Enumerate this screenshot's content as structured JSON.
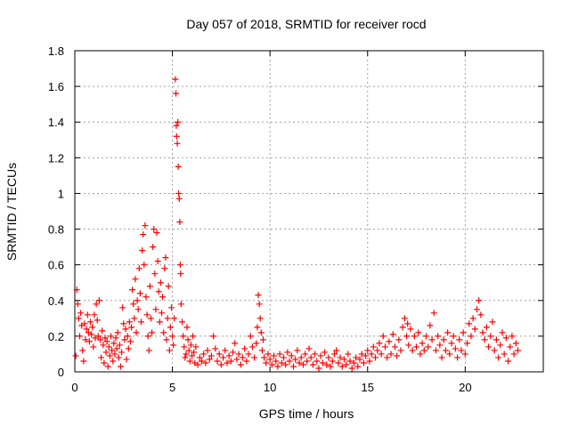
{
  "chart_data": {
    "type": "scatter",
    "title": "Day 057 of 2018, SRMTID for receiver rocd",
    "xlabel": "GPS time / hours",
    "ylabel": "SRMTID / TECUs",
    "xlim": [
      0,
      24
    ],
    "ylim": [
      0,
      1.8
    ],
    "x_ticks": [
      0,
      5,
      10,
      15,
      20
    ],
    "y_ticks": [
      0,
      0.2,
      0.4,
      0.6,
      0.8,
      1,
      1.2,
      1.4,
      1.6,
      1.8
    ],
    "y_tick_labels": [
      "0",
      "0.2",
      "0.4",
      "0.6",
      "0.8",
      "1",
      "1.2",
      "1.4",
      "1.6",
      "1.8"
    ],
    "grid": true,
    "marker": "+",
    "series": [
      {
        "name": "SRMTID",
        "color": "#ff0000",
        "points": [
          [
            0.05,
            0.09
          ],
          [
            0.1,
            0.46
          ],
          [
            0.15,
            0.38
          ],
          [
            0.2,
            0.3
          ],
          [
            0.25,
            0.2
          ],
          [
            0.3,
            0.33
          ],
          [
            0.35,
            0.26
          ],
          [
            0.4,
            0.12
          ],
          [
            0.45,
            0.06
          ],
          [
            0.5,
            0.27
          ],
          [
            0.55,
            0.18
          ],
          [
            0.6,
            0.24
          ],
          [
            0.65,
            0.32
          ],
          [
            0.7,
            0.22
          ],
          [
            0.75,
            0.17
          ],
          [
            0.8,
            0.28
          ],
          [
            0.85,
            0.21
          ],
          [
            0.9,
            0.25
          ],
          [
            0.95,
            0.14
          ],
          [
            1.0,
            0.32
          ],
          [
            1.05,
            0.19
          ],
          [
            1.1,
            0.38
          ],
          [
            1.15,
            0.29
          ],
          [
            1.2,
            0.2
          ],
          [
            1.25,
            0.4
          ],
          [
            1.3,
            0.18
          ],
          [
            1.35,
            0.08
          ],
          [
            1.4,
            0.23
          ],
          [
            1.45,
            0.15
          ],
          [
            1.5,
            0.05
          ],
          [
            1.55,
            0.19
          ],
          [
            1.6,
            0.11
          ],
          [
            1.65,
            0.17
          ],
          [
            1.7,
            0.03
          ],
          [
            1.75,
            0.14
          ],
          [
            1.8,
            0.09
          ],
          [
            1.85,
            0.2
          ],
          [
            1.9,
            0.12
          ],
          [
            1.95,
            0.06
          ],
          [
            2.0,
            0.16
          ],
          [
            2.05,
            0.1
          ],
          [
            2.1,
            0.19
          ],
          [
            2.15,
            0.13
          ],
          [
            2.2,
            0.22
          ],
          [
            2.25,
            0.08
          ],
          [
            2.3,
            0.15
          ],
          [
            2.35,
            0.03
          ],
          [
            2.4,
            0.11
          ],
          [
            2.45,
            0.36
          ],
          [
            2.5,
            0.27
          ],
          [
            2.55,
            0.18
          ],
          [
            2.6,
            0.24
          ],
          [
            2.65,
            0.07
          ],
          [
            2.7,
            0.2
          ],
          [
            2.75,
            0.13
          ],
          [
            2.8,
            0.28
          ],
          [
            2.85,
            0.17
          ],
          [
            2.9,
            0.25
          ],
          [
            2.95,
            0.46
          ],
          [
            3.0,
            0.38
          ],
          [
            3.05,
            0.3
          ],
          [
            3.1,
            0.52
          ],
          [
            3.15,
            0.22
          ],
          [
            3.2,
            0.4
          ],
          [
            3.25,
            0.35
          ],
          [
            3.3,
            0.58
          ],
          [
            3.35,
            0.44
          ],
          [
            3.4,
            0.28
          ],
          [
            3.45,
            0.68
          ],
          [
            3.5,
            0.77
          ],
          [
            3.55,
            0.6
          ],
          [
            3.6,
            0.82
          ],
          [
            3.65,
            0.42
          ],
          [
            3.7,
            0.32
          ],
          [
            3.75,
            0.2
          ],
          [
            3.8,
            0.12
          ],
          [
            3.85,
            0.48
          ],
          [
            3.9,
            0.3
          ],
          [
            3.95,
            0.22
          ],
          [
            4.0,
            0.7
          ],
          [
            4.05,
            0.8
          ],
          [
            4.1,
            0.55
          ],
          [
            4.15,
            0.35
          ],
          [
            4.2,
            0.78
          ],
          [
            4.25,
            0.62
          ],
          [
            4.3,
            0.45
          ],
          [
            4.35,
            0.28
          ],
          [
            4.4,
            0.5
          ],
          [
            4.45,
            0.33
          ],
          [
            4.5,
            0.42
          ],
          [
            4.55,
            0.22
          ],
          [
            4.6,
            0.58
          ],
          [
            4.65,
            0.64
          ],
          [
            4.7,
            0.18
          ],
          [
            4.75,
            0.3
          ],
          [
            4.8,
            0.48
          ],
          [
            4.85,
            0.12
          ],
          [
            4.9,
            0.25
          ],
          [
            4.95,
            0.36
          ],
          [
            5.0,
            0.2
          ],
          [
            5.05,
            0.15
          ],
          [
            5.1,
            0.3
          ],
          [
            5.15,
            1.64
          ],
          [
            5.18,
            1.56
          ],
          [
            5.2,
            1.38
          ],
          [
            5.22,
            1.32
          ],
          [
            5.25,
            1.28
          ],
          [
            5.28,
            1.4
          ],
          [
            5.3,
            1.15
          ],
          [
            5.32,
            1.0
          ],
          [
            5.35,
            0.97
          ],
          [
            5.38,
            0.84
          ],
          [
            5.4,
            0.6
          ],
          [
            5.42,
            0.55
          ],
          [
            5.45,
            0.38
          ],
          [
            5.5,
            0.28
          ],
          [
            5.55,
            0.2
          ],
          [
            5.6,
            0.14
          ],
          [
            5.65,
            0.08
          ],
          [
            5.7,
            0.1
          ],
          [
            5.75,
            0.25
          ],
          [
            5.8,
            0.18
          ],
          [
            5.85,
            0.12
          ],
          [
            5.9,
            0.06
          ],
          [
            5.95,
            0.15
          ],
          [
            6.0,
            0.09
          ],
          [
            6.05,
            0.2
          ],
          [
            6.1,
            0.11
          ],
          [
            6.15,
            0.05
          ],
          [
            6.2,
            0.14
          ],
          [
            6.3,
            0.04
          ],
          [
            6.4,
            0.08
          ],
          [
            6.5,
            0.06
          ],
          [
            6.6,
            0.1
          ],
          [
            6.7,
            0.05
          ],
          [
            6.8,
            0.12
          ],
          [
            6.9,
            0.07
          ],
          [
            7.0,
            0.09
          ],
          [
            7.1,
            0.2
          ],
          [
            7.2,
            0.13
          ],
          [
            7.3,
            0.06
          ],
          [
            7.4,
            0.1
          ],
          [
            7.5,
            0.04
          ],
          [
            7.6,
            0.08
          ],
          [
            7.7,
            0.12
          ],
          [
            7.8,
            0.05
          ],
          [
            7.9,
            0.09
          ],
          [
            8.0,
            0.06
          ],
          [
            8.1,
            0.11
          ],
          [
            8.2,
            0.16
          ],
          [
            8.3,
            0.07
          ],
          [
            8.4,
            0.1
          ],
          [
            8.5,
            0.04
          ],
          [
            8.6,
            0.08
          ],
          [
            8.7,
            0.13
          ],
          [
            8.8,
            0.06
          ],
          [
            8.9,
            0.1
          ],
          [
            9.0,
            0.2
          ],
          [
            9.1,
            0.14
          ],
          [
            9.2,
            0.08
          ],
          [
            9.3,
            0.16
          ],
          [
            9.35,
            0.25
          ],
          [
            9.4,
            0.43
          ],
          [
            9.45,
            0.38
          ],
          [
            9.5,
            0.3
          ],
          [
            9.55,
            0.22
          ],
          [
            9.6,
            0.12
          ],
          [
            9.65,
            0.18
          ],
          [
            9.7,
            0.08
          ],
          [
            9.8,
            0.05
          ],
          [
            9.9,
            0.1
          ],
          [
            10.0,
            0.07
          ],
          [
            10.1,
            0.04
          ],
          [
            10.2,
            0.09
          ],
          [
            10.3,
            0.06
          ],
          [
            10.4,
            0.03
          ],
          [
            10.5,
            0.1
          ],
          [
            10.6,
            0.05
          ],
          [
            10.7,
            0.08
          ],
          [
            10.8,
            0.04
          ],
          [
            10.9,
            0.11
          ],
          [
            11.0,
            0.06
          ],
          [
            11.1,
            0.09
          ],
          [
            11.2,
            0.03
          ],
          [
            11.3,
            0.07
          ],
          [
            11.4,
            0.12
          ],
          [
            11.5,
            0.05
          ],
          [
            11.6,
            0.08
          ],
          [
            11.7,
            0.04
          ],
          [
            11.8,
            0.1
          ],
          [
            11.9,
            0.06
          ],
          [
            12.0,
            0.13
          ],
          [
            12.1,
            0.08
          ],
          [
            12.2,
            0.04
          ],
          [
            12.3,
            0.1
          ],
          [
            12.4,
            0.06
          ],
          [
            12.5,
            0.02
          ],
          [
            12.6,
            0.09
          ],
          [
            12.7,
            0.05
          ],
          [
            12.8,
            0.11
          ],
          [
            12.9,
            0.04
          ],
          [
            13.0,
            0.08
          ],
          [
            13.1,
            0.03
          ],
          [
            13.2,
            0.06
          ],
          [
            13.3,
            0.1
          ],
          [
            13.4,
            0.12
          ],
          [
            13.5,
            0.05
          ],
          [
            13.6,
            0.08
          ],
          [
            13.7,
            0.03
          ],
          [
            13.8,
            0.07
          ],
          [
            13.9,
            0.04
          ],
          [
            14.0,
            0.1
          ],
          [
            14.1,
            0.06
          ],
          [
            14.2,
            0.02
          ],
          [
            14.3,
            0.05
          ],
          [
            14.4,
            0.08
          ],
          [
            14.5,
            0.03
          ],
          [
            14.6,
            0.07
          ],
          [
            14.7,
            0.1
          ],
          [
            14.8,
            0.05
          ],
          [
            14.9,
            0.09
          ],
          [
            15.0,
            0.12
          ],
          [
            15.1,
            0.06
          ],
          [
            15.2,
            0.1
          ],
          [
            15.3,
            0.14
          ],
          [
            15.4,
            0.08
          ],
          [
            15.5,
            0.12
          ],
          [
            15.6,
            0.16
          ],
          [
            15.7,
            0.1
          ],
          [
            15.8,
            0.2
          ],
          [
            15.9,
            0.14
          ],
          [
            16.0,
            0.08
          ],
          [
            16.1,
            0.17
          ],
          [
            16.2,
            0.1
          ],
          [
            16.3,
            0.21
          ],
          [
            16.4,
            0.14
          ],
          [
            16.5,
            0.09
          ],
          [
            16.6,
            0.18
          ],
          [
            16.7,
            0.12
          ],
          [
            16.8,
            0.25
          ],
          [
            16.9,
            0.3
          ],
          [
            17.0,
            0.2
          ],
          [
            17.05,
            0.27
          ],
          [
            17.1,
            0.15
          ],
          [
            17.2,
            0.24
          ],
          [
            17.3,
            0.12
          ],
          [
            17.4,
            0.2
          ],
          [
            17.5,
            0.14
          ],
          [
            17.6,
            0.22
          ],
          [
            17.7,
            0.1
          ],
          [
            17.8,
            0.16
          ],
          [
            17.9,
            0.12
          ],
          [
            18.0,
            0.2
          ],
          [
            18.1,
            0.14
          ],
          [
            18.2,
            0.26
          ],
          [
            18.3,
            0.18
          ],
          [
            18.4,
            0.33
          ],
          [
            18.5,
            0.12
          ],
          [
            18.6,
            0.2
          ],
          [
            18.7,
            0.15
          ],
          [
            18.8,
            0.08
          ],
          [
            18.9,
            0.18
          ],
          [
            19.0,
            0.12
          ],
          [
            19.1,
            0.22
          ],
          [
            19.2,
            0.1
          ],
          [
            19.3,
            0.16
          ],
          [
            19.4,
            0.2
          ],
          [
            19.5,
            0.13
          ],
          [
            19.6,
            0.08
          ],
          [
            19.7,
            0.18
          ],
          [
            19.8,
            0.12
          ],
          [
            19.9,
            0.22
          ],
          [
            20.0,
            0.1
          ],
          [
            20.1,
            0.16
          ],
          [
            20.2,
            0.27
          ],
          [
            20.3,
            0.2
          ],
          [
            20.4,
            0.3
          ],
          [
            20.5,
            0.24
          ],
          [
            20.6,
            0.35
          ],
          [
            20.7,
            0.4
          ],
          [
            20.8,
            0.32
          ],
          [
            20.9,
            0.22
          ],
          [
            21.0,
            0.18
          ],
          [
            21.1,
            0.25
          ],
          [
            21.2,
            0.14
          ],
          [
            21.3,
            0.2
          ],
          [
            21.4,
            0.28
          ],
          [
            21.5,
            0.12
          ],
          [
            21.6,
            0.18
          ],
          [
            21.7,
            0.08
          ],
          [
            21.8,
            0.15
          ],
          [
            21.9,
            0.22
          ],
          [
            22.0,
            0.1
          ],
          [
            22.1,
            0.19
          ],
          [
            22.2,
            0.06
          ],
          [
            22.3,
            0.14
          ],
          [
            22.4,
            0.2
          ],
          [
            22.5,
            0.1
          ],
          [
            22.6,
            0.16
          ],
          [
            22.7,
            0.12
          ]
        ]
      }
    ]
  }
}
